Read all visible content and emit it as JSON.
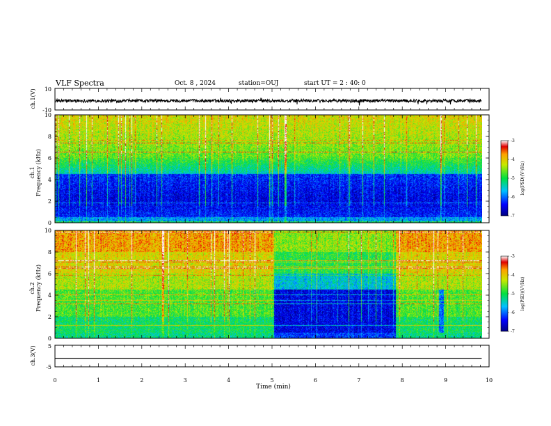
{
  "header": {
    "title": "VLF Spectra",
    "date": "Oct. 8 , 2024",
    "station": "station=OUJ",
    "start": "start UT = 2 : 40: 0"
  },
  "chart_data": [
    {
      "type": "line",
      "panel": "ch1-waveform",
      "ylabel": "ch.1(V)",
      "ylim": [
        -10,
        10
      ],
      "ytick_labels": [
        "10",
        "-10"
      ],
      "baseline": -1.5,
      "noise_amplitude": 1.5,
      "x_range": [
        0,
        9.83
      ],
      "color": "#000000"
    },
    {
      "type": "heatmap",
      "panel": "ch1-spectrogram",
      "ylabel_top": "ch.1",
      "ylabel": "Frequency (kHz)",
      "ylim": [
        0,
        10
      ],
      "yticks": [
        0,
        2,
        4,
        6,
        8,
        10
      ],
      "x_range": [
        0,
        9.83
      ],
      "description": "Dense spectrogram, high power above 5 kHz with impulsive vertical spikes; low power band 0.5-4 kHz",
      "colorbar": {
        "label": "log(PSD)(V²/Hz)",
        "range": [
          -7,
          -3
        ],
        "ticks": [
          -3,
          -4,
          -5,
          -6,
          -7
        ]
      }
    },
    {
      "type": "heatmap",
      "panel": "ch2-spectrogram",
      "ylabel_top": "ch.2",
      "ylabel": "Frequency (kHz)",
      "ylim": [
        0,
        10
      ],
      "yticks": [
        0,
        2,
        4,
        6,
        8,
        10
      ],
      "x_range": [
        0,
        9.83
      ],
      "description": "High power across band for 0-5 min; low power 0.5-4.5 kHz between 5 and 7.85 min; partial recovery after",
      "colorbar": {
        "label": "log(PSD)(V²/Hz)",
        "range": [
          -7,
          -3
        ],
        "ticks": [
          -3,
          -4,
          -5,
          -6,
          -7
        ]
      }
    },
    {
      "type": "line",
      "panel": "ch3-waveform",
      "ylabel": "ch.3(V)",
      "ylim": [
        -5,
        5
      ],
      "ytick_labels": [
        "5",
        "-5"
      ],
      "x": [
        0,
        9.83
      ],
      "y": [
        -1.2,
        -1.2
      ],
      "color": "#000000"
    }
  ],
  "xaxis": {
    "label": "Time (min)",
    "range": [
      0,
      10
    ],
    "ticks": [
      "0",
      "1",
      "2",
      "3",
      "4",
      "5",
      "6",
      "7",
      "8",
      "9",
      "10"
    ]
  },
  "colors": {
    "low": "#00008b",
    "mid_low": "#00c8c8",
    "mid": "#40d840",
    "mid_high": "#f0e040",
    "high": "#e02020"
  }
}
